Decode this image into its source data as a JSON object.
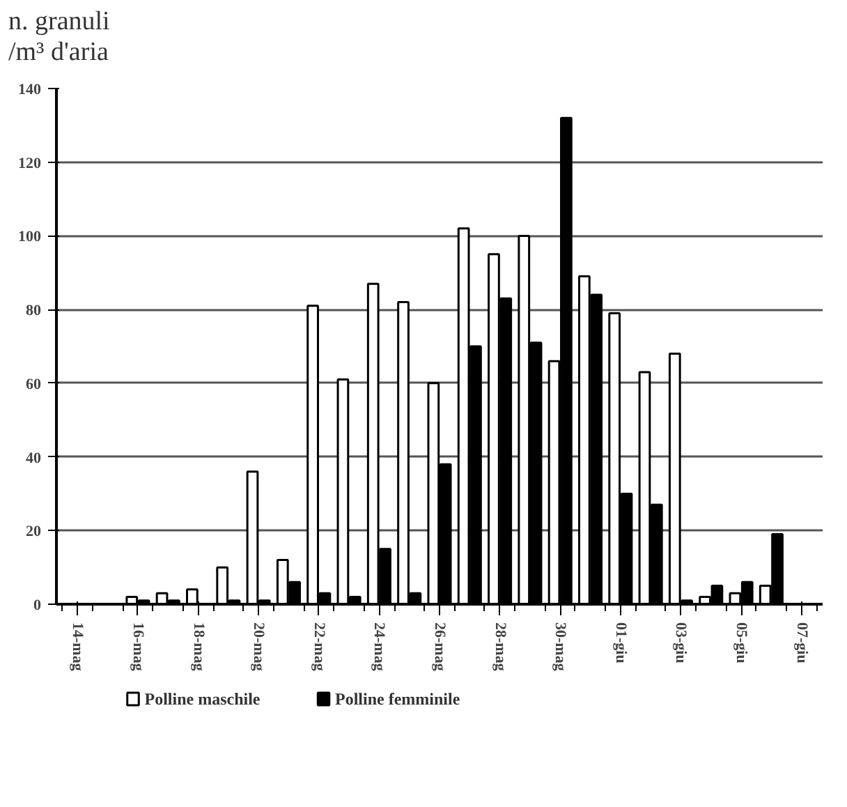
{
  "chart_data": {
    "type": "bar",
    "ylabel": "n. granuli\n/m³ d'aria",
    "categories": [
      "14-mag",
      null,
      "16-mag",
      null,
      "18-mag",
      null,
      "20-mag",
      null,
      "22-mag",
      null,
      "24-mag",
      null,
      "26-mag",
      null,
      "28-mag",
      null,
      "30-mag",
      null,
      "01-giu",
      null,
      "03-giu",
      null,
      "05-giu",
      null,
      "07-giu"
    ],
    "series": [
      {
        "name": "Polline maschile",
        "color": "#ffffff",
        "values": [
          0,
          0,
          2,
          3,
          4,
          10,
          36,
          12,
          81,
          61,
          87,
          82,
          60,
          102,
          95,
          100,
          66,
          89,
          79,
          63,
          68,
          2,
          3,
          5,
          0
        ]
      },
      {
        "name": "Polline femminile",
        "color": "#000000",
        "values": [
          0,
          0,
          1,
          1,
          0,
          1,
          1,
          6,
          3,
          2,
          15,
          3,
          38,
          70,
          83,
          71,
          132,
          84,
          30,
          27,
          1,
          5,
          6,
          19,
          0
        ]
      }
    ],
    "ylim": [
      0,
      140
    ],
    "yticks": [
      0,
      20,
      40,
      60,
      80,
      100,
      120,
      140
    ],
    "grid": "y",
    "legend": "bottom left"
  }
}
